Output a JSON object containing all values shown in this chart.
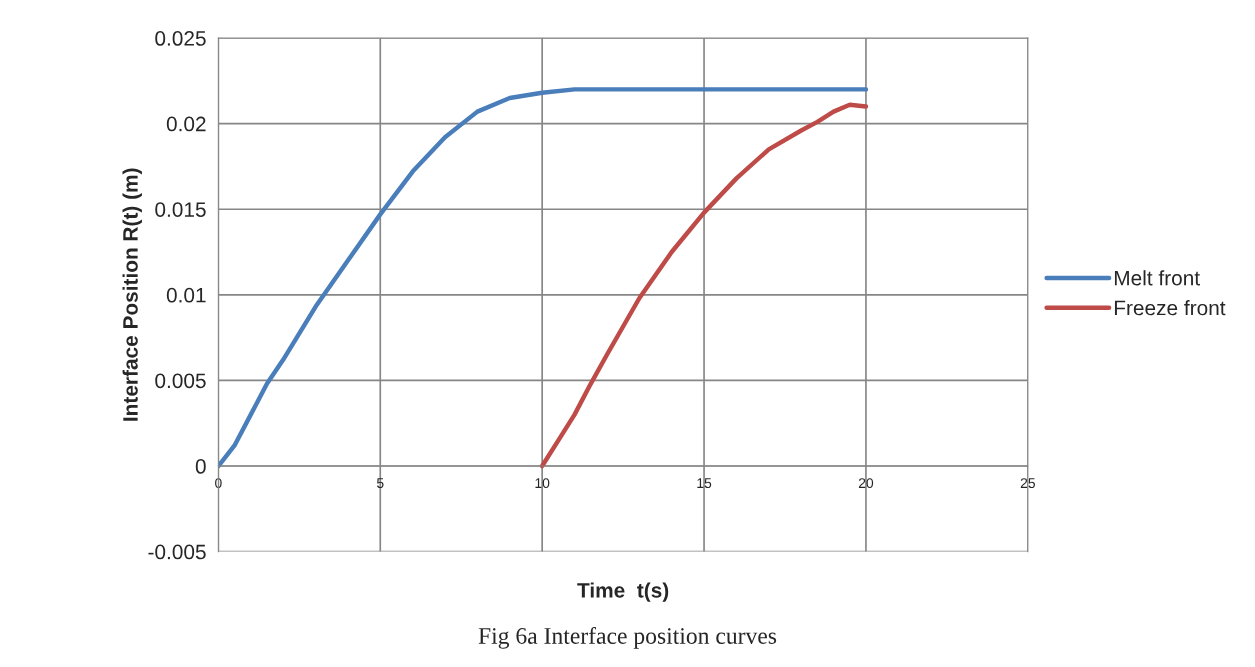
{
  "chart_data": {
    "type": "line",
    "xlabel": "Time  t(s)",
    "ylabel": "Interface Position R(t) (m)",
    "annotations": [
      "Fig 6a Interface position curves"
    ],
    "xlim": [
      0,
      25
    ],
    "xticks": [
      0,
      5,
      10,
      15,
      20,
      25
    ],
    "ylim": [
      -0.005,
      0.025
    ],
    "yticks": [
      -0.005,
      0,
      0.005,
      0.01,
      0.015,
      0.02,
      0.025
    ],
    "grid": true,
    "legend": "right",
    "marker": "none",
    "line_style": "solid",
    "series": [
      {
        "name": "Melt front",
        "color": "#4a7ebb",
        "x": [
          0,
          0.5,
          1,
          1.5,
          2,
          3,
          4,
          5,
          6,
          7,
          8,
          9,
          10,
          11,
          12,
          14,
          16,
          18,
          20
        ],
        "values": [
          0,
          0.0012,
          0.003,
          0.0048,
          0.0062,
          0.0093,
          0.012,
          0.0147,
          0.0172,
          0.0192,
          0.0207,
          0.0215,
          0.0218,
          0.022,
          0.022,
          0.022,
          0.022,
          0.022,
          0.022
        ]
      },
      {
        "name": "Freeze front",
        "color": "#be4b48",
        "x": [
          10,
          10.5,
          11,
          11.5,
          12,
          13,
          14,
          15,
          16,
          17,
          18,
          18.5,
          19,
          19.5,
          20
        ],
        "values": [
          0,
          0.0015,
          0.003,
          0.0048,
          0.0065,
          0.0098,
          0.0125,
          0.0148,
          0.0168,
          0.0185,
          0.0196,
          0.0201,
          0.0207,
          0.0211,
          0.021
        ]
      }
    ]
  }
}
